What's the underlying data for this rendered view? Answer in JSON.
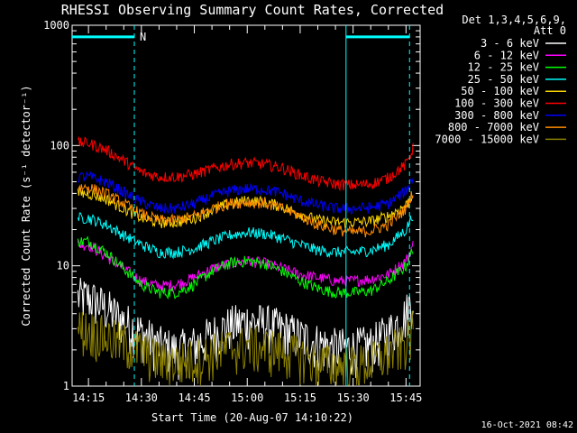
{
  "title": "RHESSI Observing Summary Count Rates, Corrected",
  "xlabel": "Start Time (20-Aug-07 14:10:22)",
  "ylabel": "Corrected Count Rate (s⁻¹ detector⁻¹)",
  "timestamp": "16-Oct-2021 08:42",
  "legend_header": [
    "Det 1,3,4,5,6,9,",
    "Att 0"
  ],
  "flag_label": "N",
  "chart_data": {
    "type": "line",
    "x_unit": "time",
    "xlim": [
      "14:10:22",
      "15:49:00"
    ],
    "x_ticks": [
      "14:15",
      "14:30",
      "14:45",
      "15:00",
      "15:15",
      "15:30",
      "15:45"
    ],
    "y_scale": "log",
    "ylim": [
      1,
      1000
    ],
    "y_ticks": [
      "1",
      "10",
      "100",
      "1000"
    ],
    "legend_position": "right",
    "flag_bars": [
      {
        "x": [
          "14:10:22",
          "14:28:00"
        ],
        "y": 800
      },
      {
        "x": [
          "15:28:00",
          "15:46:00"
        ],
        "y": 800
      }
    ],
    "vertical_markers": [
      "14:28:00",
      "15:28:00",
      "15:46:00"
    ],
    "x": [
      "14:12",
      "14:15",
      "14:20",
      "14:25",
      "14:30",
      "14:35",
      "14:40",
      "14:45",
      "14:50",
      "14:55",
      "15:00",
      "15:05",
      "15:10",
      "15:15",
      "15:20",
      "15:25",
      "15:30",
      "15:35",
      "15:40",
      "15:45",
      "15:47"
    ],
    "series": [
      {
        "name": "3 - 6 keV",
        "color": "#ffffff",
        "values": [
          5.5,
          5.5,
          4.5,
          3.5,
          2.8,
          2.2,
          2.0,
          2.2,
          2.7,
          3.2,
          3.5,
          3.3,
          3.0,
          2.6,
          2.3,
          2.1,
          2.1,
          2.2,
          2.8,
          4.0,
          5.8
        ]
      },
      {
        "name": "6 - 12 keV",
        "color": "#ff00ff",
        "values": [
          15,
          15,
          12,
          9.5,
          7.5,
          6.8,
          7.0,
          8.0,
          9.5,
          10.5,
          11,
          10.5,
          9.5,
          8.5,
          8.0,
          7.5,
          7.5,
          7.8,
          8.5,
          11,
          15
        ]
      },
      {
        "name": "12 - 25 keV",
        "color": "#00ff00",
        "values": [
          16,
          16,
          13,
          9.5,
          7.0,
          6.0,
          6.0,
          7.0,
          9.0,
          10.5,
          11,
          10.5,
          9.0,
          7.5,
          6.5,
          6.0,
          6.0,
          6.2,
          7.5,
          10,
          14
        ]
      },
      {
        "name": "25 - 50 keV",
        "color": "#00ffff",
        "values": [
          25,
          25,
          22,
          18,
          15,
          13,
          13,
          14,
          16,
          18,
          19,
          18.5,
          17,
          15,
          13.5,
          13,
          13,
          13.5,
          15,
          20,
          27
        ]
      },
      {
        "name": "50 - 100 keV",
        "color": "#ffd700",
        "values": [
          40,
          40,
          36,
          30,
          25,
          23,
          23,
          25,
          29,
          33,
          35,
          34,
          31,
          27,
          24,
          23,
          23,
          23.5,
          26,
          32,
          40
        ]
      },
      {
        "name": "100 - 300 keV",
        "color": "#ff0000",
        "values": [
          105,
          105,
          92,
          75,
          60,
          55,
          55,
          58,
          64,
          70,
          72,
          70,
          65,
          57,
          51,
          48,
          47,
          48,
          54,
          70,
          95
        ]
      },
      {
        "name": "300 - 800 keV",
        "color": "#0000ff",
        "values": [
          55,
          55,
          50,
          41,
          34,
          30,
          30,
          33,
          38,
          42,
          44,
          43,
          40,
          35,
          32,
          30,
          30,
          30.5,
          33,
          42,
          55
        ]
      },
      {
        "name": "800 - 7000 keV",
        "color": "#ff8c00",
        "values": [
          45,
          45,
          40,
          33,
          27,
          24,
          24,
          26,
          30,
          33,
          34,
          33,
          30,
          26,
          22,
          20,
          19,
          19.5,
          22,
          30,
          42
        ]
      },
      {
        "name": "7000 - 15000 keV",
        "color": "#8b8000",
        "values": [
          3.0,
          3.0,
          2.6,
          2.3,
          2.0,
          1.7,
          1.6,
          1.7,
          1.9,
          2.1,
          2.2,
          2.1,
          2.0,
          1.8,
          1.6,
          1.5,
          1.5,
          1.6,
          1.9,
          2.3,
          3.0
        ]
      }
    ]
  }
}
